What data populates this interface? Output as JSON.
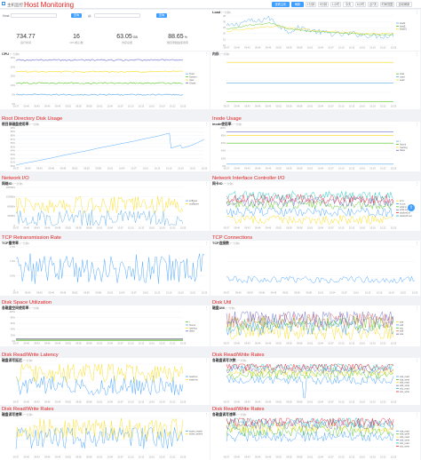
{
  "header": {
    "crumb": "主机监控",
    "title": "Host Monitoring",
    "toolbar": [
      {
        "label": "查看主机",
        "active": true
      },
      {
        "label": "刷新",
        "active": true
      },
      {
        "label": "1分钟",
        "active": false
      },
      {
        "label": "5分钟",
        "active": false
      },
      {
        "label": "1小时",
        "active": false
      },
      {
        "label": "今天",
        "active": false
      },
      {
        "label": "6小时",
        "active": false
      },
      {
        "label": "近7天",
        "active": false
      },
      {
        "label": "时间范围",
        "active": false
      },
      {
        "label": "自动刷新",
        "active": false
      }
    ]
  },
  "summary": {
    "host_label": "Host:",
    "from_label": "从:",
    "query_label": "查询",
    "query2_label": "查询",
    "stats": [
      {
        "value": "734.77",
        "unit": "",
        "label": "运行时间"
      },
      {
        "value": "16",
        "unit": "",
        "label": "CPU核心数"
      },
      {
        "value": "63.05",
        "unit": "GB",
        "label": "内存总量"
      },
      {
        "value": "88.65",
        "unit": "%",
        "label": "根目录磁盘使用率"
      }
    ]
  },
  "x_ticks": [
    "09:37",
    "09:40",
    "09:43",
    "09:46",
    "09:49",
    "09:52",
    "09:55",
    "09:58",
    "10:01",
    "10:04",
    "10:07",
    "10:10",
    "10:13",
    "10:16",
    "10:19",
    "10:22",
    "10:25"
  ],
  "panels": {
    "load": {
      "section": "",
      "title": "Load",
      "sub": "(一分钟)",
      "y_ticks": [
        "35",
        "30",
        "25",
        "20",
        "15",
        "10"
      ],
      "legend": [
        "load1",
        "load5",
        "load15"
      ],
      "colors": [
        "#5aa9e6",
        "#52c41a",
        "#fadb14"
      ]
    },
    "cpu": {
      "section": "",
      "title": "CPU",
      "sub": "(一分钟)",
      "y_ticks": [
        "25%",
        "20%",
        "15%",
        "10%",
        "5%",
        "0%"
      ],
      "legend": [
        "Total",
        "System",
        "User",
        "IOwait"
      ],
      "colors": [
        "#5aa9e6",
        "#52c41a",
        "#fadb14",
        "#6a6acf"
      ]
    },
    "memory": {
      "section": "",
      "title": "内存",
      "sub": "(一分钟)",
      "y_ticks": [
        "",
        "",
        "",
        "",
        ""
      ],
      "legend": [
        "total",
        "used",
        "avail"
      ],
      "colors": [
        "#52c41a",
        "#5aa9e6",
        "#fadb14"
      ]
    },
    "root_disk": {
      "section": "Root Directory Disk Usage",
      "title": "根目录磁盘使用率",
      "sub": "(一分钟)",
      "y_ticks": [
        "90%",
        "89%",
        "88%",
        "87%",
        "86%",
        "85%",
        "84%",
        "83%",
        "82%",
        "81%",
        "80%"
      ],
      "legend": [],
      "colors": [
        "#409eff"
      ]
    },
    "inode": {
      "section": "Inode Usage",
      "title": "inode使用率",
      "sub": "(一分钟)",
      "y_ticks": [
        "100%",
        "80%",
        "60%",
        "40%",
        "20%",
        "0%"
      ],
      "legend": [
        "/",
        "/home",
        "/var/log",
        "/data"
      ],
      "colors": [
        "#5aa9e6",
        "#52c41a",
        "#fadb14",
        "#6a6acf"
      ]
    },
    "net_io": {
      "section": "Network I/O",
      "title": "网络IO",
      "sub": "(一分钟)",
      "y_ticks": [
        "160MB/s",
        "120MB/s",
        "80MB/s",
        "40MB/s",
        "0"
      ],
      "legend": [
        "in/Bytes",
        "out/Bytes"
      ],
      "colors": [
        "#5aa9e6",
        "#fadb14"
      ]
    },
    "nic_io": {
      "section": "Network Interface Controller I/O",
      "title": "网卡IO",
      "sub": "(一分钟)",
      "y_ticks": [
        "",
        "",
        "",
        "",
        ""
      ],
      "legend": [
        "lo:in",
        "lo:out",
        "eth0:in",
        "eth0:out",
        "docker0:in",
        "docker0:out"
      ],
      "colors": [
        "#fadb14",
        "#409eff",
        "#52c41a",
        "#6a6acf",
        "#f5222d",
        "#13c2c2"
      ]
    },
    "tcp_retrans": {
      "section": "TCP Retransmission Rate",
      "title": "TCP重传率",
      "sub": "(一分钟)",
      "y_ticks": [
        "1.5%",
        "1.0%",
        "0.5%",
        "0"
      ],
      "legend": [],
      "colors": [
        "#409eff"
      ]
    },
    "tcp_conn": {
      "section": "TCP Connections",
      "title": "TCP连接数",
      "sub": "(一分钟)",
      "y_ticks": [
        "",
        "",
        "",
        ""
      ],
      "legend": [],
      "colors": [
        "#409eff"
      ]
    },
    "disk_space": {
      "section": "Disk Space Utilization",
      "title": "各磁盘空间使用率",
      "sub": "(一分钟)",
      "y_ticks": [
        "100%",
        "80%",
        "60%",
        "40%",
        "20%",
        "0%"
      ],
      "legend": [
        "/",
        "/home",
        "/var/log",
        "/data"
      ],
      "colors": [
        "#52c41a",
        "#5aa9e6",
        "#fadb14",
        "#6a6acf"
      ]
    },
    "disk_util": {
      "section": "Disk Util",
      "title": "磁盘Util",
      "sub": "(一分钟)",
      "y_ticks": [
        "",
        "",
        "",
        "",
        ""
      ],
      "legend": [
        "sda",
        "sdb",
        "sdc",
        "sdd",
        "sde"
      ],
      "colors": [
        "#fadb14",
        "#409eff",
        "#52c41a",
        "#e8684a",
        "#6a6acf"
      ]
    },
    "disk_latency": {
      "section": "Disk Read/Write Latency",
      "title": "磁盘读写延迟",
      "sub": "(一分钟)",
      "y_ticks": [
        "",
        "",
        "",
        "",
        ""
      ],
      "legend": [
        "read/ms",
        "write/ms"
      ],
      "colors": [
        "#409eff",
        "#fadb14"
      ]
    },
    "disk_iops": {
      "section": "Disk Read/Write Rates",
      "title": "各磁盘读写次数",
      "sub": "(一分钟)",
      "y_ticks": [
        "",
        "",
        "",
        "",
        ""
      ],
      "legend": [
        "sda_read",
        "sda_write",
        "sdb_read",
        "sdb_write",
        "sdc_read",
        "sdc_write"
      ],
      "colors": [
        "#409eff",
        "#52c41a",
        "#fadb14",
        "#6a6acf",
        "#13c2c2",
        "#f5222d"
      ]
    },
    "disk_rw": {
      "section": "Disk Read/Write Rates",
      "title": "磁盘读写速率",
      "sub": "(一分钟)",
      "y_ticks": [
        "",
        "",
        "",
        "",
        "",
        ""
      ],
      "legend": [
        "bytes_read/s",
        "bytes_write/s"
      ],
      "colors": [
        "#409eff",
        "#fadb14"
      ]
    },
    "disk_rw2": {
      "section": "Disk Read/Write Rates",
      "title": "各磁盘读写速率",
      "sub": "(一分钟)",
      "y_ticks": [
        "",
        "",
        "",
        "",
        "",
        ""
      ],
      "legend": [
        "sda_read",
        "sda_write",
        "sdb_read",
        "sdb_write",
        "sdc_read",
        "sdc_write"
      ],
      "colors": [
        "#409eff",
        "#52c41a",
        "#fadb14",
        "#6a6acf",
        "#13c2c2",
        "#f5222d"
      ]
    }
  },
  "chart_data": [
    {
      "type": "line",
      "title": "Load",
      "x": "x_ticks",
      "ylim": [
        10,
        35
      ],
      "series": [
        {
          "name": "load1",
          "values": [
            26,
            28,
            31,
            30,
            34,
            27,
            22,
            25,
            23,
            21,
            20,
            19,
            20,
            19,
            18,
            18,
            19
          ]
        },
        {
          "name": "load5",
          "values": [
            24,
            25,
            27,
            28,
            29,
            27,
            24,
            23,
            22,
            21,
            21,
            20,
            20,
            19,
            19,
            19,
            19
          ]
        },
        {
          "name": "load15",
          "values": [
            22,
            23,
            24,
            25,
            26,
            26,
            25,
            24,
            23,
            22,
            22,
            21,
            21,
            20,
            20,
            20,
            20
          ]
        }
      ]
    },
    {
      "type": "line",
      "title": "CPU",
      "x": "x_ticks",
      "ylim": [
        0,
        25
      ],
      "series": [
        {
          "name": "Total",
          "values": [
            20,
            20,
            19,
            20,
            20,
            20,
            19,
            20,
            20,
            19,
            20,
            20,
            20,
            19,
            20,
            20,
            20
          ]
        },
        {
          "name": "System",
          "values": [
            13,
            13,
            13,
            13,
            13,
            13,
            13,
            13,
            13,
            13,
            13,
            13,
            13,
            13,
            13,
            13,
            13
          ]
        },
        {
          "name": "User",
          "values": [
            7,
            7,
            7,
            7,
            7,
            7,
            7,
            7,
            7,
            7,
            7,
            7,
            7,
            7,
            7,
            7,
            7
          ]
        },
        {
          "name": "IOwait",
          "values": [
            1,
            1,
            1,
            1,
            1,
            1,
            1,
            1,
            1,
            1,
            1,
            1,
            1,
            1,
            1,
            1,
            1
          ]
        }
      ]
    },
    {
      "type": "line",
      "title": "根目录磁盘使用率",
      "x": "x_ticks",
      "ylim": [
        80,
        90
      ],
      "series": [
        {
          "name": "/",
          "values": [
            80.3,
            80.9,
            81.5,
            82.1,
            82.8,
            83.4,
            84.0,
            84.7,
            85.3,
            85.9,
            86.5,
            87.2,
            87.8,
            88.6,
            84.6,
            85.5,
            87.0
          ]
        }
      ]
    },
    {
      "type": "line",
      "title": "TCP重传率",
      "x": "x_ticks",
      "ylim": [
        0,
        1.5
      ],
      "series": [
        {
          "name": "",
          "values": [
            0.8,
            0.9,
            0.7,
            1.1,
            0.8,
            0.9,
            1.2,
            0.8,
            0.7,
            0.9,
            1.0,
            0.8,
            0.9,
            0.7,
            0.8,
            0.9,
            0.8
          ]
        }
      ]
    }
  ]
}
